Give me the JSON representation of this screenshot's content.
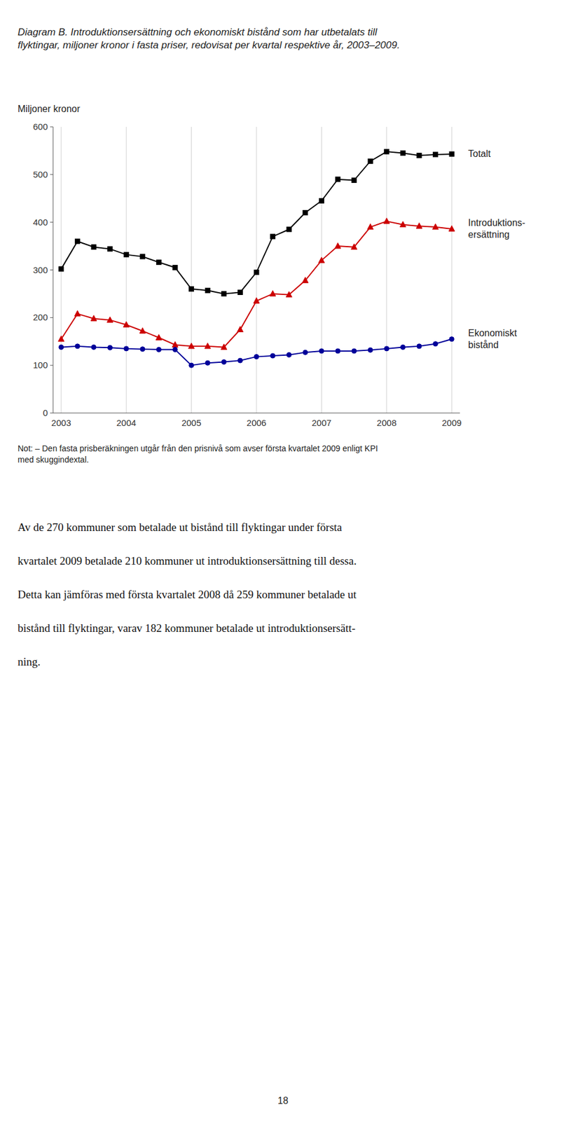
{
  "chart_data": {
    "type": "line",
    "title": "Diagram B. Introduktionsersättning och ekonomiskt bistånd som har utbetalats till\nflyktingar, miljoner kronor i fasta priser, redovisat per kvartal respektive år, 2003–2009.",
    "y_label": "Miljoner kronor",
    "categories": [
      "2003",
      null,
      null,
      null,
      "2004",
      null,
      null,
      null,
      "2005",
      null,
      null,
      null,
      "2006",
      null,
      null,
      null,
      "2007",
      null,
      null,
      null,
      "2008",
      null,
      null,
      null,
      "2009"
    ],
    "series": [
      {
        "name": "Totalt",
        "color": "#000000",
        "marker": "square",
        "values": [
          302,
          360,
          348,
          344,
          332,
          328,
          316,
          305,
          260,
          257,
          250,
          253,
          295,
          370,
          385,
          420,
          445,
          490,
          488,
          528,
          548,
          545,
          540,
          542,
          543
        ]
      },
      {
        "name": "Introduktions-\nersättning",
        "color": "#cc0000",
        "marker": "triangle",
        "values": [
          155,
          208,
          198,
          195,
          185,
          172,
          158,
          143,
          140,
          140,
          138,
          175,
          235,
          250,
          248,
          278,
          320,
          350,
          348,
          390,
          402,
          395,
          392,
          390,
          386
        ]
      },
      {
        "name": "Ekonomiskt\nbistånd",
        "color": "#000099",
        "marker": "circle",
        "values": [
          138,
          140,
          138,
          137,
          135,
          134,
          133,
          133,
          100,
          105,
          107,
          110,
          118,
          120,
          122,
          127,
          130,
          130,
          130,
          132,
          135,
          138,
          140,
          145,
          155
        ]
      }
    ],
    "ylim": [
      0,
      600
    ],
    "yticks": [
      0,
      100,
      200,
      300,
      400,
      500,
      600
    ],
    "grid": "x"
  },
  "note": "Not: – Den fasta prisberäkningen utgår från den prisnivå som avser första kvartalet 2009 enligt KPI\nmed skuggindextal.",
  "body_text": [
    "Av de 270 kommuner som betalade ut bistånd till flyktingar under första",
    "kvartalet 2009 betalade 210 kommuner ut introduktionsersättning till dessa.",
    "Detta kan jämföras med första kvartalet 2008 då 259 kommuner betalade ut",
    "bistånd till flyktingar, varav 182 kommuner betalade ut introduktionsersätt-",
    "ning."
  ],
  "page_number": "18"
}
